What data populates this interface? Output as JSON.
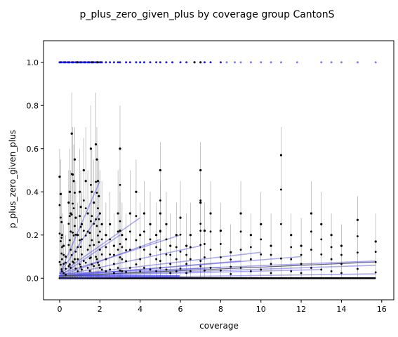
{
  "chart_data": {
    "type": "scatter",
    "title": "p_plus_zero_given_plus by coverage group CantonS",
    "xlabel": "coverage",
    "ylabel": "p_plus_zero_given_plus",
    "xlim": [
      -0.8,
      16.6
    ],
    "ylim": [
      -0.1,
      1.1
    ],
    "xticks": [
      0,
      2,
      4,
      6,
      8,
      10,
      12,
      14,
      16
    ],
    "yticks": [
      0.0,
      0.2,
      0.4,
      0.6,
      0.8,
      1.0
    ],
    "xtick_labels": [
      "0",
      "2",
      "4",
      "6",
      "8",
      "10",
      "12",
      "14",
      "16"
    ],
    "ytick_labels": [
      "0.0",
      "0.2",
      "0.4",
      "0.6",
      "0.8",
      "1.0"
    ],
    "grid": false,
    "legend": "none",
    "colors": {
      "points": "#000000",
      "points_at_one": "#0000ff",
      "error_bars": "#888888",
      "fit_lines": "#4444ee",
      "overall_fit": "#555555"
    },
    "series": [
      {
        "kind": "points_with_error_bars",
        "points": [
          {
            "x": 0.0,
            "y": 0.47,
            "hi": 0.6
          },
          {
            "x": 0.05,
            "y": 0.39,
            "hi": 0.55
          },
          {
            "x": 0.1,
            "y": 0.26,
            "hi": 0.4
          },
          {
            "x": 0.12,
            "y": 0.2,
            "hi": 0.3
          },
          {
            "x": 0.2,
            "y": 0.15,
            "hi": 0.25
          },
          {
            "x": 0.3,
            "y": 0.1,
            "hi": 0.2
          },
          {
            "x": 0.45,
            "y": 0.35,
            "hi": 0.5
          },
          {
            "x": 0.5,
            "y": 0.4,
            "hi": 0.6
          },
          {
            "x": 0.55,
            "y": 0.3,
            "hi": 0.5
          },
          {
            "x": 0.6,
            "y": 0.67,
            "hi": 0.86
          },
          {
            "x": 0.65,
            "y": 0.48,
            "hi": 0.7
          },
          {
            "x": 0.7,
            "y": 0.45,
            "hi": 0.62
          },
          {
            "x": 0.75,
            "y": 0.55,
            "hi": 0.7
          },
          {
            "x": 0.8,
            "y": 0.28,
            "hi": 0.45
          },
          {
            "x": 0.9,
            "y": 0.2,
            "hi": 0.35
          },
          {
            "x": 1.0,
            "y": 0.4,
            "hi": 0.6
          },
          {
            "x": 1.05,
            "y": 0.33,
            "hi": 0.5
          },
          {
            "x": 1.1,
            "y": 0.25,
            "hi": 0.4
          },
          {
            "x": 1.2,
            "y": 0.5,
            "hi": 0.65
          },
          {
            "x": 1.3,
            "y": 0.45,
            "hi": 0.7
          },
          {
            "x": 1.4,
            "y": 0.3,
            "hi": 0.5
          },
          {
            "x": 1.5,
            "y": 0.21,
            "hi": 0.35
          },
          {
            "x": 1.55,
            "y": 0.6,
            "hi": 0.8
          },
          {
            "x": 1.6,
            "y": 0.4,
            "hi": 0.6
          },
          {
            "x": 1.7,
            "y": 0.35,
            "hi": 0.55
          },
          {
            "x": 1.8,
            "y": 0.62,
            "hi": 0.86
          },
          {
            "x": 1.85,
            "y": 0.55,
            "hi": 0.7
          },
          {
            "x": 1.9,
            "y": 0.45,
            "hi": 0.62
          },
          {
            "x": 1.95,
            "y": 0.38,
            "hi": 0.55
          },
          {
            "x": 2.0,
            "y": 0.3,
            "hi": 0.5
          },
          {
            "x": 2.1,
            "y": 0.25,
            "hi": 0.45
          },
          {
            "x": 2.3,
            "y": 0.2,
            "hi": 0.35
          },
          {
            "x": 2.5,
            "y": 0.25,
            "hi": 0.4
          },
          {
            "x": 2.7,
            "y": 0.15,
            "hi": 0.3
          },
          {
            "x": 2.9,
            "y": 0.3,
            "hi": 0.5
          },
          {
            "x": 3.0,
            "y": 0.22,
            "hi": 0.4
          },
          {
            "x": 3.0,
            "y": 0.6,
            "hi": 0.8
          },
          {
            "x": 3.1,
            "y": 0.2,
            "hi": 0.35
          },
          {
            "x": 3.3,
            "y": 0.18,
            "hi": 0.3
          },
          {
            "x": 3.5,
            "y": 0.3,
            "hi": 0.5
          },
          {
            "x": 3.8,
            "y": 0.4,
            "hi": 0.55
          },
          {
            "x": 4.0,
            "y": 0.2,
            "hi": 0.35
          },
          {
            "x": 4.2,
            "y": 0.3,
            "hi": 0.45
          },
          {
            "x": 4.5,
            "y": 0.25,
            "hi": 0.4
          },
          {
            "x": 4.8,
            "y": 0.2,
            "hi": 0.35
          },
          {
            "x": 5.0,
            "y": 0.5,
            "hi": 0.63
          },
          {
            "x": 5.0,
            "y": 0.3,
            "hi": 0.45
          },
          {
            "x": 5.3,
            "y": 0.25,
            "hi": 0.4
          },
          {
            "x": 5.5,
            "y": 0.15,
            "hi": 0.3
          },
          {
            "x": 5.8,
            "y": 0.2,
            "hi": 0.35
          },
          {
            "x": 6.0,
            "y": 0.28,
            "hi": 0.45
          },
          {
            "x": 6.3,
            "y": 0.15,
            "hi": 0.3
          },
          {
            "x": 6.5,
            "y": 0.2,
            "hi": 0.35
          },
          {
            "x": 7.0,
            "y": 0.5,
            "hi": 0.63
          },
          {
            "x": 7.0,
            "y": 0.35,
            "hi": 0.5
          },
          {
            "x": 7.2,
            "y": 0.22,
            "hi": 0.35
          },
          {
            "x": 7.5,
            "y": 0.3,
            "hi": 0.45
          },
          {
            "x": 8.0,
            "y": 0.22,
            "hi": 0.35
          },
          {
            "x": 8.5,
            "y": 0.12,
            "hi": 0.25
          },
          {
            "x": 9.0,
            "y": 0.3,
            "hi": 0.45
          },
          {
            "x": 9.5,
            "y": 0.2,
            "hi": 0.3
          },
          {
            "x": 10.0,
            "y": 0.25,
            "hi": 0.4
          },
          {
            "x": 10.5,
            "y": 0.15,
            "hi": 0.3
          },
          {
            "x": 11.0,
            "y": 0.57,
            "hi": 0.7
          },
          {
            "x": 11.5,
            "y": 0.2,
            "hi": 0.3
          },
          {
            "x": 12.0,
            "y": 0.15,
            "hi": 0.28
          },
          {
            "x": 12.5,
            "y": 0.3,
            "hi": 0.45
          },
          {
            "x": 13.0,
            "y": 0.25,
            "hi": 0.4
          },
          {
            "x": 13.5,
            "y": 0.2,
            "hi": 0.3
          },
          {
            "x": 14.0,
            "y": 0.15,
            "hi": 0.25
          },
          {
            "x": 14.8,
            "y": 0.27,
            "hi": 0.38
          },
          {
            "x": 15.7,
            "y": 0.17,
            "hi": 0.3
          }
        ]
      },
      {
        "kind": "points_at_one",
        "x": [
          0.0,
          0.1,
          0.2,
          0.3,
          0.4,
          0.5,
          0.6,
          0.7,
          0.8,
          0.9,
          1.0,
          1.1,
          1.2,
          1.3,
          1.4,
          1.5,
          1.6,
          1.7,
          1.8,
          1.9,
          2.0,
          2.1,
          2.3,
          2.5,
          2.7,
          2.9,
          3.0,
          3.3,
          3.5,
          3.8,
          4.0,
          4.2,
          4.5,
          4.8,
          5.0,
          5.3,
          5.6,
          6.0,
          6.3,
          6.7,
          7.0,
          7.2,
          7.5,
          8.0,
          8.3,
          8.7,
          9.0,
          9.5,
          10.0,
          10.5,
          11.0,
          11.8,
          13.0,
          13.5,
          14.0,
          14.8,
          15.7
        ]
      },
      {
        "kind": "fit_lines",
        "lines": [
          {
            "x": [
              0,
              2
            ],
            "y": [
              0.02,
              0.45
            ]
          },
          {
            "x": [
              0,
              2
            ],
            "y": [
              0.02,
              0.3
            ]
          },
          {
            "x": [
              0,
              4
            ],
            "y": [
              0.02,
              0.28
            ]
          },
          {
            "x": [
              0,
              6
            ],
            "y": [
              0.02,
              0.2
            ]
          },
          {
            "x": [
              0,
              7
            ],
            "y": [
              0.01,
              0.15
            ]
          },
          {
            "x": [
              0,
              10
            ],
            "y": [
              0.01,
              0.12
            ]
          },
          {
            "x": [
              0,
              9
            ],
            "y": [
              0.01,
              0.08
            ]
          },
          {
            "x": [
              0,
              12
            ],
            "y": [
              0.01,
              0.1
            ]
          },
          {
            "x": [
              0,
              15.7
            ],
            "y": [
              0.02,
              0.08
            ]
          },
          {
            "x": [
              0,
              15.7
            ],
            "y": [
              0.01,
              0.06
            ]
          },
          {
            "x": [
              0,
              15.7
            ],
            "y": [
              0.0,
              0.02
            ]
          },
          {
            "x": [
              0,
              5
            ],
            "y": [
              0.01,
              0.18
            ]
          },
          {
            "x": [
              0,
              8
            ],
            "y": [
              0.01,
              0.05
            ]
          },
          {
            "x": [
              0,
              3
            ],
            "y": [
              0.01,
              0.2
            ]
          },
          {
            "x": [
              0,
              13
            ],
            "y": [
              0.01,
              0.04
            ]
          }
        ]
      },
      {
        "kind": "overall_fit",
        "x": [
          0,
          15.7
        ],
        "y": [
          0.01,
          0.075
        ]
      }
    ]
  }
}
